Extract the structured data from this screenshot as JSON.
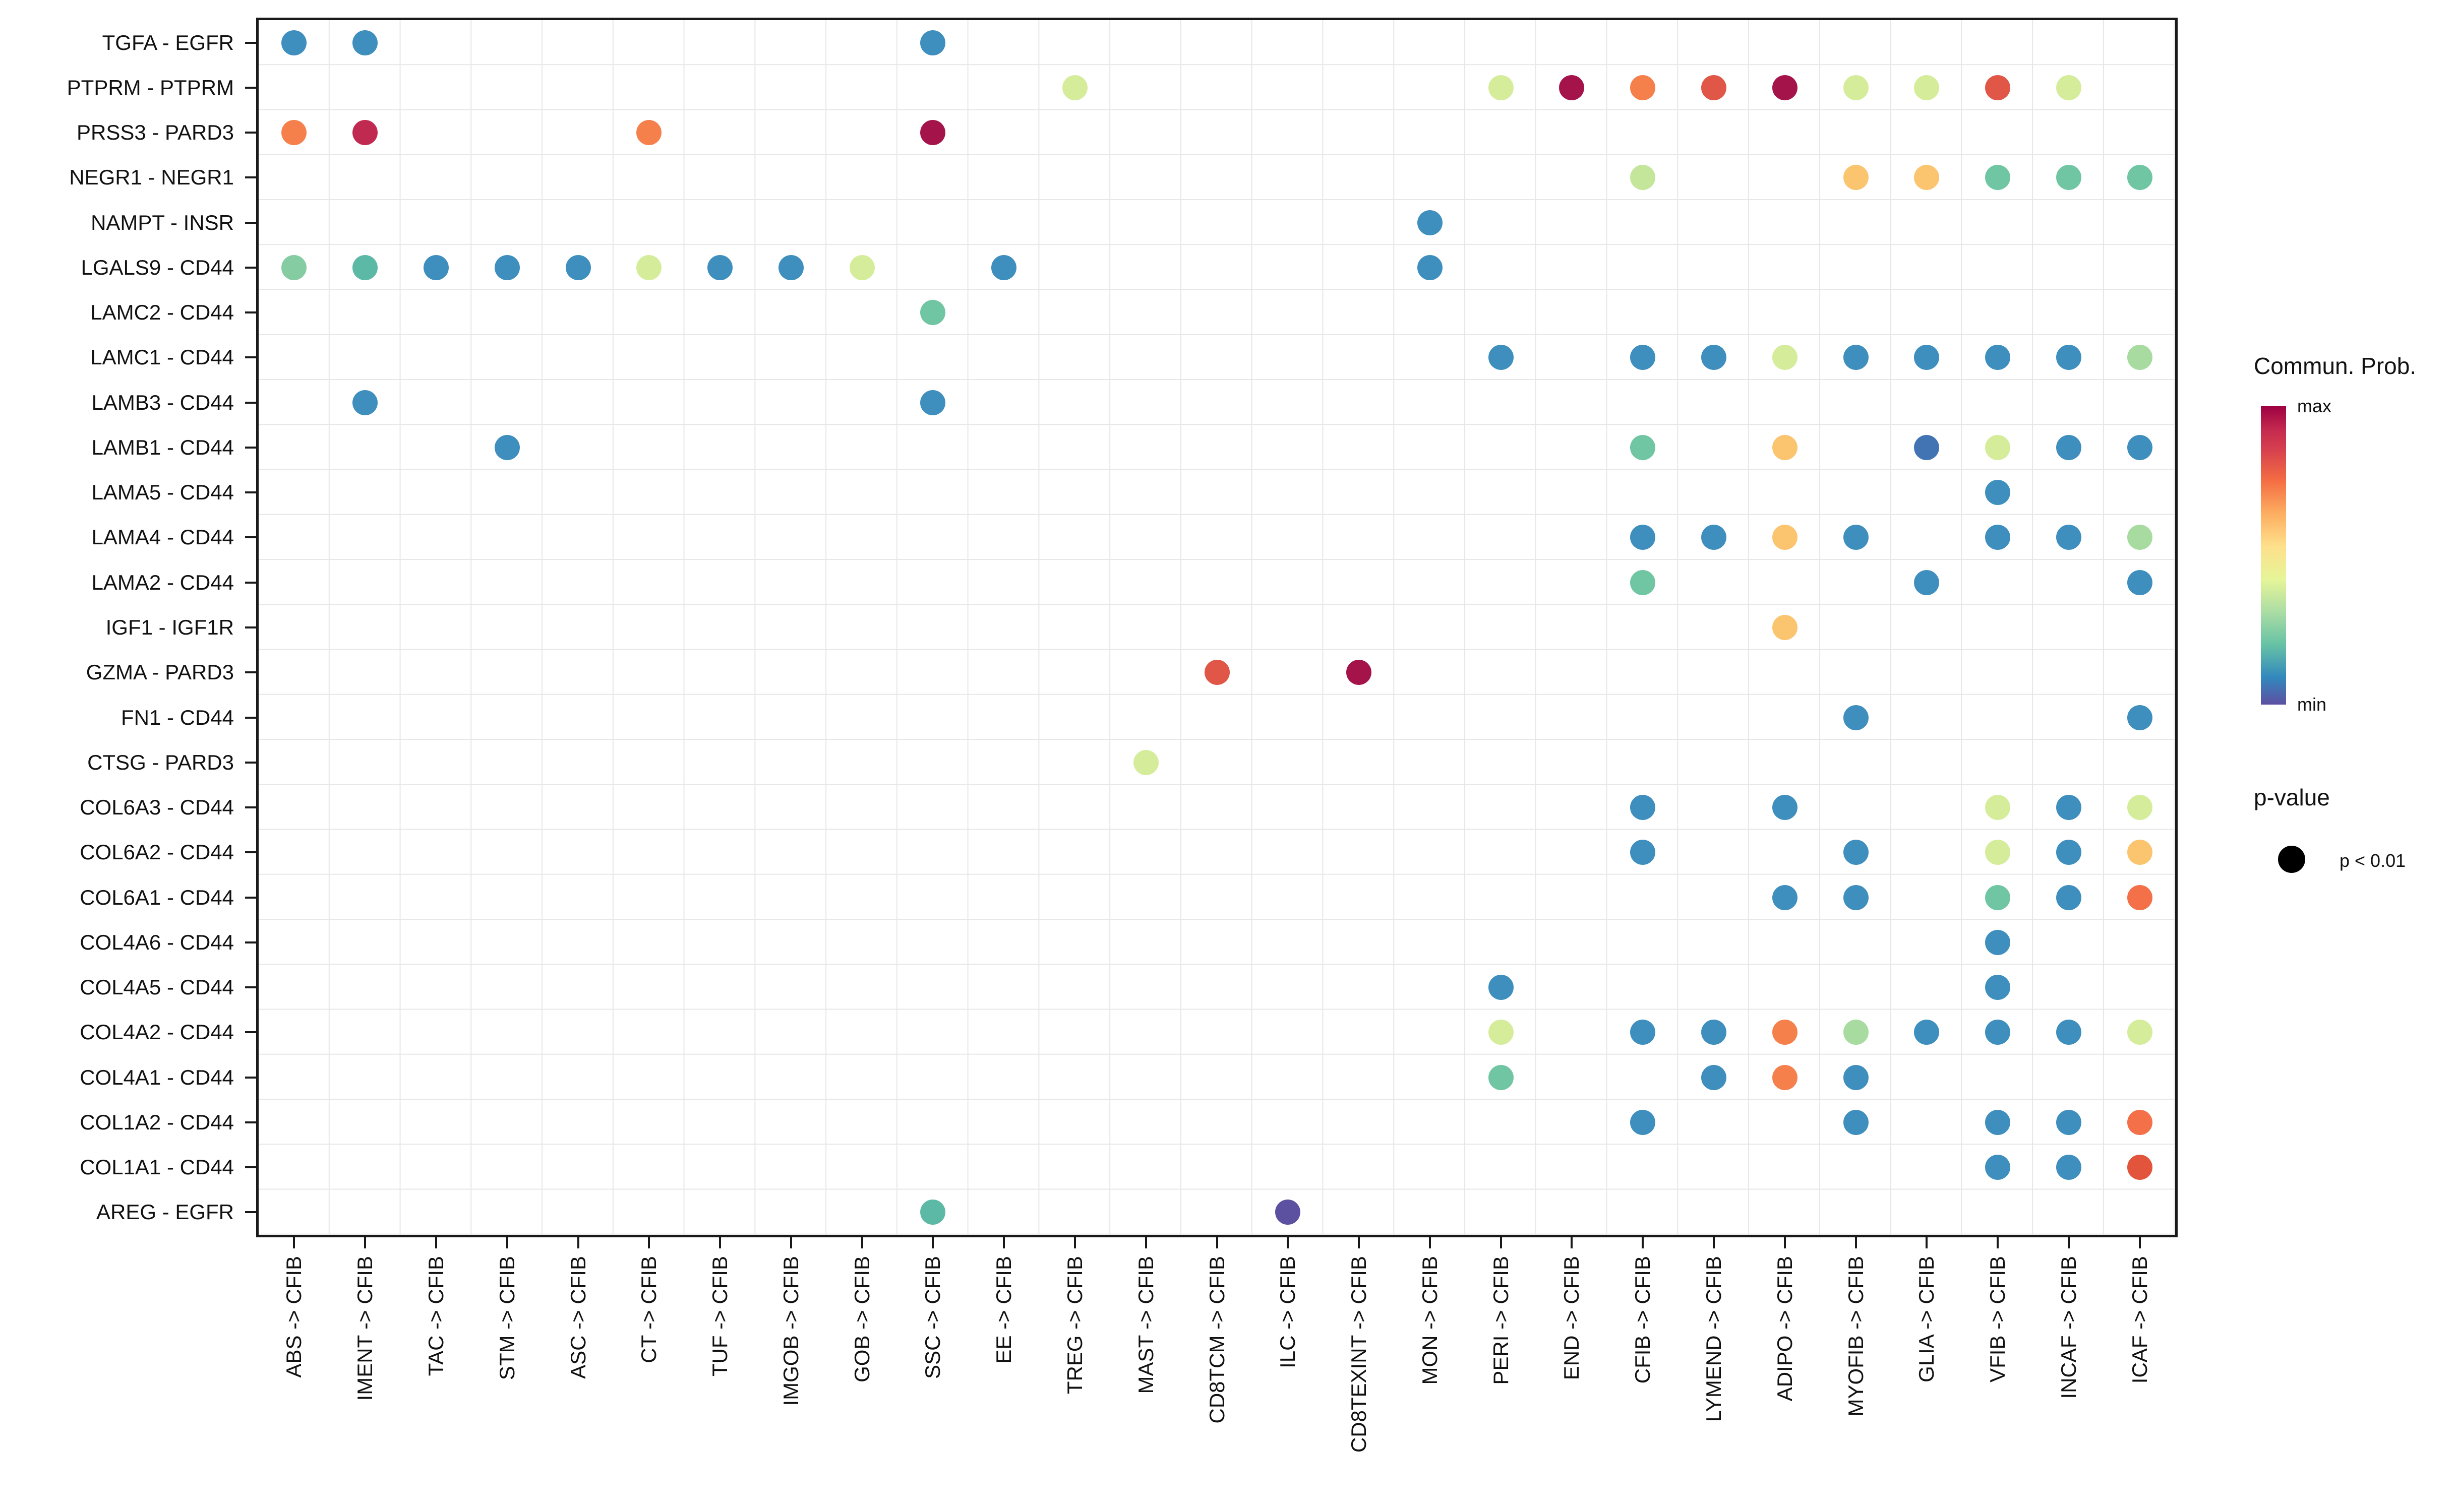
{
  "chart_data": {
    "type": "bubble",
    "title": "",
    "x_categories": [
      "ABS -> CFIB",
      "IMENT -> CFIB",
      "TAC -> CFIB",
      "STM -> CFIB",
      "ASC -> CFIB",
      "CT -> CFIB",
      "TUF -> CFIB",
      "IMGOB -> CFIB",
      "GOB -> CFIB",
      "SSC -> CFIB",
      "EE -> CFIB",
      "TREG -> CFIB",
      "MAST -> CFIB",
      "CD8TCM -> CFIB",
      "ILC -> CFIB",
      "CD8TEXINT -> CFIB",
      "MON -> CFIB",
      "PERI -> CFIB",
      "END -> CFIB",
      "CFIB -> CFIB",
      "LYMEND -> CFIB",
      "ADIPO -> CFIB",
      "MYOFIB -> CFIB",
      "GLIA -> CFIB",
      "VFIB -> CFIB",
      "INCAF -> CFIB",
      "ICAF -> CFIB"
    ],
    "y_categories": [
      "TGFA - EGFR",
      "PTPRM - PTPRM",
      "PRSS3 - PARD3",
      "NEGR1 - NEGR1",
      "NAMPT - INSR",
      "LGALS9 - CD44",
      "LAMC2 - CD44",
      "LAMC1 - CD44",
      "LAMB3 - CD44",
      "LAMB1 - CD44",
      "LAMA5 - CD44",
      "LAMA4 - CD44",
      "LAMA2 - CD44",
      "IGF1 - IGF1R",
      "GZMA - PARD3",
      "FN1 - CD44",
      "CTSG - PARD3",
      "COL6A3 - CD44",
      "COL6A2 - CD44",
      "COL6A1 - CD44",
      "COL4A6 - CD44",
      "COL4A5 - CD44",
      "COL4A2 - CD44",
      "COL4A1 - CD44",
      "COL1A2 - CD44",
      "COL1A1 - CD44",
      "AREG - EGFR"
    ],
    "palette": {
      "blue": "#3E8EBE",
      "indigo": "#4273B3",
      "purple": "#5C50A0",
      "teal": "#5CB9A6",
      "green": "#70C6A2",
      "green-light": "#85CCA3",
      "green-pale": "#A7DBA0",
      "yellow-green": "#D5ED9B",
      "yellow-green-2": "#C3E69B",
      "amber": "#FBC46F",
      "orange": "#F5804C",
      "orange-deep": "#F37049",
      "red-orange": "#E05647",
      "red": "#E3543D",
      "crimson": "#C02A50",
      "dark-red": "#A4144B"
    },
    "dots": [
      {
        "row": "TGFA - EGFR",
        "col": "ABS -> CFIB",
        "color": "blue"
      },
      {
        "row": "TGFA - EGFR",
        "col": "IMENT -> CFIB",
        "color": "blue"
      },
      {
        "row": "TGFA - EGFR",
        "col": "SSC -> CFIB",
        "color": "blue"
      },
      {
        "row": "PTPRM - PTPRM",
        "col": "TREG -> CFIB",
        "color": "yellow-green"
      },
      {
        "row": "PTPRM - PTPRM",
        "col": "PERI -> CFIB",
        "color": "yellow-green"
      },
      {
        "row": "PTPRM - PTPRM",
        "col": "END -> CFIB",
        "color": "dark-red"
      },
      {
        "row": "PTPRM - PTPRM",
        "col": "CFIB -> CFIB",
        "color": "orange"
      },
      {
        "row": "PTPRM - PTPRM",
        "col": "LYMEND -> CFIB",
        "color": "red-orange"
      },
      {
        "row": "PTPRM - PTPRM",
        "col": "ADIPO -> CFIB",
        "color": "dark-red"
      },
      {
        "row": "PTPRM - PTPRM",
        "col": "MYOFIB -> CFIB",
        "color": "yellow-green"
      },
      {
        "row": "PTPRM - PTPRM",
        "col": "GLIA -> CFIB",
        "color": "yellow-green"
      },
      {
        "row": "PTPRM - PTPRM",
        "col": "VFIB -> CFIB",
        "color": "red-orange"
      },
      {
        "row": "PTPRM - PTPRM",
        "col": "INCAF -> CFIB",
        "color": "yellow-green"
      },
      {
        "row": "PRSS3 - PARD3",
        "col": "ABS -> CFIB",
        "color": "orange"
      },
      {
        "row": "PRSS3 - PARD3",
        "col": "IMENT -> CFIB",
        "color": "crimson"
      },
      {
        "row": "PRSS3 - PARD3",
        "col": "CT -> CFIB",
        "color": "orange"
      },
      {
        "row": "PRSS3 - PARD3",
        "col": "SSC -> CFIB",
        "color": "dark-red"
      },
      {
        "row": "NEGR1 - NEGR1",
        "col": "CFIB -> CFIB",
        "color": "yellow-green-2"
      },
      {
        "row": "NEGR1 - NEGR1",
        "col": "MYOFIB -> CFIB",
        "color": "amber"
      },
      {
        "row": "NEGR1 - NEGR1",
        "col": "GLIA -> CFIB",
        "color": "amber"
      },
      {
        "row": "NEGR1 - NEGR1",
        "col": "VFIB -> CFIB",
        "color": "green"
      },
      {
        "row": "NEGR1 - NEGR1",
        "col": "INCAF -> CFIB",
        "color": "green"
      },
      {
        "row": "NEGR1 - NEGR1",
        "col": "ICAF -> CFIB",
        "color": "green"
      },
      {
        "row": "NAMPT - INSR",
        "col": "MON -> CFIB",
        "color": "blue"
      },
      {
        "row": "LGALS9 - CD44",
        "col": "ABS -> CFIB",
        "color": "green-light"
      },
      {
        "row": "LGALS9 - CD44",
        "col": "IMENT -> CFIB",
        "color": "teal"
      },
      {
        "row": "LGALS9 - CD44",
        "col": "TAC -> CFIB",
        "color": "blue"
      },
      {
        "row": "LGALS9 - CD44",
        "col": "STM -> CFIB",
        "color": "blue"
      },
      {
        "row": "LGALS9 - CD44",
        "col": "ASC -> CFIB",
        "color": "blue"
      },
      {
        "row": "LGALS9 - CD44",
        "col": "CT -> CFIB",
        "color": "yellow-green"
      },
      {
        "row": "LGALS9 - CD44",
        "col": "TUF -> CFIB",
        "color": "blue"
      },
      {
        "row": "LGALS9 - CD44",
        "col": "IMGOB -> CFIB",
        "color": "blue"
      },
      {
        "row": "LGALS9 - CD44",
        "col": "GOB -> CFIB",
        "color": "yellow-green"
      },
      {
        "row": "LGALS9 - CD44",
        "col": "EE -> CFIB",
        "color": "blue"
      },
      {
        "row": "LGALS9 - CD44",
        "col": "MON -> CFIB",
        "color": "blue"
      },
      {
        "row": "LAMC2 - CD44",
        "col": "SSC -> CFIB",
        "color": "green"
      },
      {
        "row": "LAMC1 - CD44",
        "col": "PERI -> CFIB",
        "color": "blue"
      },
      {
        "row": "LAMC1 - CD44",
        "col": "CFIB -> CFIB",
        "color": "blue"
      },
      {
        "row": "LAMC1 - CD44",
        "col": "LYMEND -> CFIB",
        "color": "blue"
      },
      {
        "row": "LAMC1 - CD44",
        "col": "ADIPO -> CFIB",
        "color": "yellow-green"
      },
      {
        "row": "LAMC1 - CD44",
        "col": "MYOFIB -> CFIB",
        "color": "blue"
      },
      {
        "row": "LAMC1 - CD44",
        "col": "GLIA -> CFIB",
        "color": "blue"
      },
      {
        "row": "LAMC1 - CD44",
        "col": "VFIB -> CFIB",
        "color": "blue"
      },
      {
        "row": "LAMC1 - CD44",
        "col": "INCAF -> CFIB",
        "color": "blue"
      },
      {
        "row": "LAMC1 - CD44",
        "col": "ICAF -> CFIB",
        "color": "green-pale"
      },
      {
        "row": "LAMB3 - CD44",
        "col": "IMENT -> CFIB",
        "color": "blue"
      },
      {
        "row": "LAMB3 - CD44",
        "col": "SSC -> CFIB",
        "color": "blue"
      },
      {
        "row": "LAMB1 - CD44",
        "col": "STM -> CFIB",
        "color": "blue"
      },
      {
        "row": "LAMB1 - CD44",
        "col": "CFIB -> CFIB",
        "color": "green"
      },
      {
        "row": "LAMB1 - CD44",
        "col": "ADIPO -> CFIB",
        "color": "amber"
      },
      {
        "row": "LAMB1 - CD44",
        "col": "GLIA -> CFIB",
        "color": "indigo"
      },
      {
        "row": "LAMB1 - CD44",
        "col": "VFIB -> CFIB",
        "color": "yellow-green"
      },
      {
        "row": "LAMB1 - CD44",
        "col": "INCAF -> CFIB",
        "color": "blue"
      },
      {
        "row": "LAMB1 - CD44",
        "col": "ICAF -> CFIB",
        "color": "blue"
      },
      {
        "row": "LAMA5 - CD44",
        "col": "VFIB -> CFIB",
        "color": "blue"
      },
      {
        "row": "LAMA4 - CD44",
        "col": "CFIB -> CFIB",
        "color": "blue"
      },
      {
        "row": "LAMA4 - CD44",
        "col": "LYMEND -> CFIB",
        "color": "blue"
      },
      {
        "row": "LAMA4 - CD44",
        "col": "ADIPO -> CFIB",
        "color": "amber"
      },
      {
        "row": "LAMA4 - CD44",
        "col": "MYOFIB -> CFIB",
        "color": "blue"
      },
      {
        "row": "LAMA4 - CD44",
        "col": "VFIB -> CFIB",
        "color": "blue"
      },
      {
        "row": "LAMA4 - CD44",
        "col": "INCAF -> CFIB",
        "color": "blue"
      },
      {
        "row": "LAMA4 - CD44",
        "col": "ICAF -> CFIB",
        "color": "green-pale"
      },
      {
        "row": "LAMA2 - CD44",
        "col": "CFIB -> CFIB",
        "color": "green"
      },
      {
        "row": "LAMA2 - CD44",
        "col": "GLIA -> CFIB",
        "color": "blue"
      },
      {
        "row": "LAMA2 - CD44",
        "col": "ICAF -> CFIB",
        "color": "blue"
      },
      {
        "row": "IGF1 - IGF1R",
        "col": "ADIPO -> CFIB",
        "color": "amber"
      },
      {
        "row": "GZMA - PARD3",
        "col": "CD8TCM -> CFIB",
        "color": "red-orange"
      },
      {
        "row": "GZMA - PARD3",
        "col": "CD8TEXINT -> CFIB",
        "color": "dark-red"
      },
      {
        "row": "FN1 - CD44",
        "col": "MYOFIB -> CFIB",
        "color": "blue"
      },
      {
        "row": "FN1 - CD44",
        "col": "ICAF -> CFIB",
        "color": "blue"
      },
      {
        "row": "CTSG - PARD3",
        "col": "MAST -> CFIB",
        "color": "yellow-green"
      },
      {
        "row": "COL6A3 - CD44",
        "col": "CFIB -> CFIB",
        "color": "blue"
      },
      {
        "row": "COL6A3 - CD44",
        "col": "ADIPO -> CFIB",
        "color": "blue"
      },
      {
        "row": "COL6A3 - CD44",
        "col": "VFIB -> CFIB",
        "color": "yellow-green"
      },
      {
        "row": "COL6A3 - CD44",
        "col": "INCAF -> CFIB",
        "color": "blue"
      },
      {
        "row": "COL6A3 - CD44",
        "col": "ICAF -> CFIB",
        "color": "yellow-green"
      },
      {
        "row": "COL6A2 - CD44",
        "col": "CFIB -> CFIB",
        "color": "blue"
      },
      {
        "row": "COL6A2 - CD44",
        "col": "MYOFIB -> CFIB",
        "color": "blue"
      },
      {
        "row": "COL6A2 - CD44",
        "col": "VFIB -> CFIB",
        "color": "yellow-green"
      },
      {
        "row": "COL6A2 - CD44",
        "col": "INCAF -> CFIB",
        "color": "blue"
      },
      {
        "row": "COL6A2 - CD44",
        "col": "ICAF -> CFIB",
        "color": "amber"
      },
      {
        "row": "COL6A1 - CD44",
        "col": "ADIPO -> CFIB",
        "color": "blue"
      },
      {
        "row": "COL6A1 - CD44",
        "col": "MYOFIB -> CFIB",
        "color": "blue"
      },
      {
        "row": "COL6A1 - CD44",
        "col": "VFIB -> CFIB",
        "color": "green"
      },
      {
        "row": "COL6A1 - CD44",
        "col": "INCAF -> CFIB",
        "color": "blue"
      },
      {
        "row": "COL6A1 - CD44",
        "col": "ICAF -> CFIB",
        "color": "orange-deep"
      },
      {
        "row": "COL4A6 - CD44",
        "col": "VFIB -> CFIB",
        "color": "blue"
      },
      {
        "row": "COL4A5 - CD44",
        "col": "PERI -> CFIB",
        "color": "blue"
      },
      {
        "row": "COL4A5 - CD44",
        "col": "VFIB -> CFIB",
        "color": "blue"
      },
      {
        "row": "COL4A2 - CD44",
        "col": "PERI -> CFIB",
        "color": "yellow-green"
      },
      {
        "row": "COL4A2 - CD44",
        "col": "CFIB -> CFIB",
        "color": "blue"
      },
      {
        "row": "COL4A2 - CD44",
        "col": "LYMEND -> CFIB",
        "color": "blue"
      },
      {
        "row": "COL4A2 - CD44",
        "col": "ADIPO -> CFIB",
        "color": "orange"
      },
      {
        "row": "COL4A2 - CD44",
        "col": "MYOFIB -> CFIB",
        "color": "green-pale"
      },
      {
        "row": "COL4A2 - CD44",
        "col": "GLIA -> CFIB",
        "color": "blue"
      },
      {
        "row": "COL4A2 - CD44",
        "col": "VFIB -> CFIB",
        "color": "blue"
      },
      {
        "row": "COL4A2 - CD44",
        "col": "INCAF -> CFIB",
        "color": "blue"
      },
      {
        "row": "COL4A2 - CD44",
        "col": "ICAF -> CFIB",
        "color": "yellow-green"
      },
      {
        "row": "COL4A1 - CD44",
        "col": "PERI -> CFIB",
        "color": "green"
      },
      {
        "row": "COL4A1 - CD44",
        "col": "LYMEND -> CFIB",
        "color": "blue"
      },
      {
        "row": "COL4A1 - CD44",
        "col": "ADIPO -> CFIB",
        "color": "orange"
      },
      {
        "row": "COL4A1 - CD44",
        "col": "MYOFIB -> CFIB",
        "color": "blue"
      },
      {
        "row": "COL1A2 - CD44",
        "col": "CFIB -> CFIB",
        "color": "blue"
      },
      {
        "row": "COL1A2 - CD44",
        "col": "MYOFIB -> CFIB",
        "color": "blue"
      },
      {
        "row": "COL1A2 - CD44",
        "col": "VFIB -> CFIB",
        "color": "blue"
      },
      {
        "row": "COL1A2 - CD44",
        "col": "INCAF -> CFIB",
        "color": "blue"
      },
      {
        "row": "COL1A2 - CD44",
        "col": "ICAF -> CFIB",
        "color": "orange-deep"
      },
      {
        "row": "COL1A1 - CD44",
        "col": "VFIB -> CFIB",
        "color": "blue"
      },
      {
        "row": "COL1A1 - CD44",
        "col": "INCAF -> CFIB",
        "color": "blue"
      },
      {
        "row": "COL1A1 - CD44",
        "col": "ICAF -> CFIB",
        "color": "red"
      },
      {
        "row": "AREG - EGFR",
        "col": "SSC -> CFIB",
        "color": "teal"
      },
      {
        "row": "AREG - EGFR",
        "col": "ILC -> CFIB",
        "color": "purple"
      }
    ],
    "legend": {
      "color_title": "Commun. Prob.",
      "color_max_label": "max",
      "color_min_label": "min",
      "gradient_top_to_bottom": [
        "#9E0142",
        "#D53E4F",
        "#F46D43",
        "#FDAE61",
        "#FEE08B",
        "#E6F598",
        "#ABDDA4",
        "#66C2A5",
        "#3288BD",
        "#5E4FA2"
      ],
      "pvalue_title": "p-value",
      "pvalue_item_label": "p < 0.01"
    },
    "layout": {
      "grid": true,
      "x_label_rotation_deg": 90,
      "legend_position": "right"
    }
  }
}
